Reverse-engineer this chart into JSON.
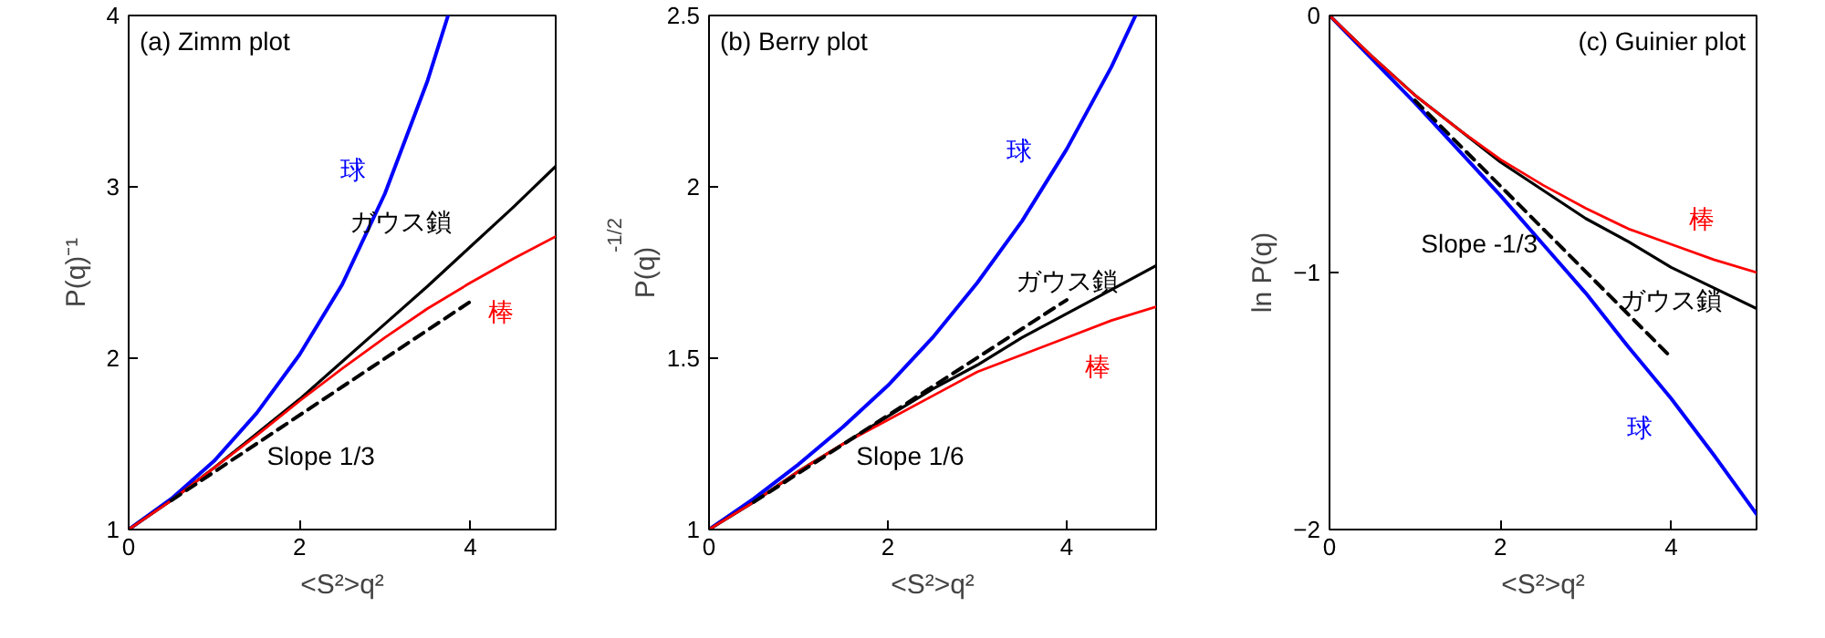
{
  "chart_data": [
    {
      "type": "line",
      "title": "(a) Zimm plot",
      "xlabel": "<S²>q²",
      "ylabel": "P(q)⁻¹",
      "x": [
        0,
        0.5,
        1,
        1.5,
        2,
        2.5,
        3,
        3.5,
        4,
        4.5,
        5
      ],
      "xlim": [
        0,
        5
      ],
      "ylim": [
        1,
        4
      ],
      "xticks": [
        0,
        2,
        4
      ],
      "yticks": [
        1,
        2,
        3,
        4
      ],
      "legend": false,
      "series": [
        {
          "name": "球",
          "color": "#0000ff",
          "x": [
            0,
            0.5,
            1,
            1.5,
            2,
            2.5,
            3,
            3.5,
            3.74
          ],
          "values": [
            1,
            1.18,
            1.4,
            1.68,
            2.02,
            2.43,
            2.96,
            3.62,
            4.0
          ]
        },
        {
          "name": "ガウス鎖",
          "color": "#000000",
          "values": [
            1,
            1.17,
            1.36,
            1.56,
            1.76,
            1.98,
            2.2,
            2.42,
            2.65,
            2.88,
            3.12
          ]
        },
        {
          "name": "棒",
          "color": "#ff0000",
          "values": [
            1,
            1.17,
            1.36,
            1.55,
            1.75,
            1.94,
            2.12,
            2.29,
            2.44,
            2.58,
            2.71
          ]
        },
        {
          "name": "Slope 1/3",
          "color": "#000000",
          "line_style": "dashed",
          "x": [
            0.5,
            4
          ],
          "values": [
            1.17,
            2.33
          ]
        }
      ]
    },
    {
      "type": "line",
      "title": "(b) Berry plot",
      "xlabel": "<S²>q²",
      "ylabel": "P(q)$^{-1/2}$",
      "x": [
        0,
        0.5,
        1,
        1.5,
        2,
        2.5,
        3,
        3.5,
        4,
        4.5,
        5
      ],
      "xlim": [
        0,
        5
      ],
      "ylim": [
        1,
        2.5
      ],
      "xticks": [
        0,
        2,
        4
      ],
      "yticks": [
        1,
        1.5,
        2,
        2.5
      ],
      "legend": false,
      "series": [
        {
          "name": "球",
          "color": "#0000ff",
          "x": [
            0,
            0.5,
            1,
            1.5,
            2,
            2.5,
            3,
            3.5,
            4,
            4.5,
            4.77
          ],
          "values": [
            1,
            1.09,
            1.19,
            1.3,
            1.42,
            1.56,
            1.72,
            1.9,
            2.11,
            2.35,
            2.5
          ]
        },
        {
          "name": "ガウス鎖",
          "color": "#000000",
          "values": [
            1,
            1.08,
            1.17,
            1.25,
            1.33,
            1.41,
            1.48,
            1.56,
            1.63,
            1.7,
            1.77
          ]
        },
        {
          "name": "棒",
          "color": "#ff0000",
          "values": [
            1,
            1.08,
            1.17,
            1.25,
            1.32,
            1.39,
            1.46,
            1.51,
            1.56,
            1.61,
            1.65
          ]
        },
        {
          "name": "Slope 1/6",
          "color": "#000000",
          "line_style": "dashed",
          "x": [
            0.5,
            4
          ],
          "values": [
            1.08,
            1.67
          ]
        }
      ]
    },
    {
      "type": "line",
      "title": "(c) Guinier plot",
      "xlabel": "<S²>q²",
      "ylabel": "ln P(q)",
      "x": [
        0,
        0.5,
        1,
        1.5,
        2,
        2.5,
        3,
        3.5,
        4,
        4.5,
        5
      ],
      "xlim": [
        0,
        5
      ],
      "ylim": [
        -2,
        0
      ],
      "xticks": [
        0,
        2,
        4
      ],
      "yticks": [
        -2,
        -1,
        0
      ],
      "legend": false,
      "series": [
        {
          "name": "球",
          "color": "#0000ff",
          "values": [
            0,
            -0.17,
            -0.34,
            -0.52,
            -0.7,
            -0.89,
            -1.08,
            -1.29,
            -1.49,
            -1.71,
            -1.94
          ]
        },
        {
          "name": "ガウス鎖",
          "color": "#000000",
          "values": [
            0,
            -0.16,
            -0.31,
            -0.44,
            -0.57,
            -0.68,
            -0.79,
            -0.88,
            -0.98,
            -1.06,
            -1.14
          ]
        },
        {
          "name": "棒",
          "color": "#ff0000",
          "values": [
            0,
            -0.16,
            -0.31,
            -0.44,
            -0.56,
            -0.66,
            -0.75,
            -0.83,
            -0.89,
            -0.95,
            -1.0
          ]
        },
        {
          "name": "Slope -1/3",
          "color": "#000000",
          "line_style": "dashed",
          "x": [
            1,
            4
          ],
          "values": [
            -0.33,
            -1.33
          ]
        }
      ]
    }
  ]
}
